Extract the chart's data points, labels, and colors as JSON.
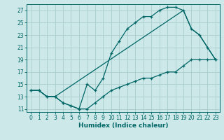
{
  "xlabel": "Humidex (Indice chaleur)",
  "ylabel": "",
  "bg_color": "#cce8e8",
  "grid_color": "#aacccc",
  "line_color": "#006666",
  "xlim": [
    -0.5,
    23.5
  ],
  "ylim": [
    10.5,
    28.0
  ],
  "xticks": [
    0,
    1,
    2,
    3,
    4,
    5,
    6,
    7,
    8,
    9,
    10,
    11,
    12,
    13,
    14,
    15,
    16,
    17,
    18,
    19,
    20,
    21,
    22,
    23
  ],
  "yticks": [
    11,
    13,
    15,
    17,
    19,
    21,
    23,
    25,
    27
  ],
  "line1_x": [
    0,
    1,
    2,
    3,
    4,
    5,
    6,
    7,
    8,
    9,
    10,
    11,
    12,
    13,
    14,
    15,
    16,
    17,
    18,
    19,
    20,
    21,
    22,
    23
  ],
  "line1_y": [
    14,
    14,
    13,
    13,
    12,
    11.5,
    11,
    11,
    12,
    13,
    14,
    14.5,
    15,
    15.5,
    16,
    16,
    16.5,
    17,
    17,
    18,
    19,
    19,
    19,
    19
  ],
  "line2_x": [
    0,
    1,
    2,
    3,
    4,
    5,
    6,
    7,
    8,
    9,
    10,
    11,
    12,
    13,
    14,
    15,
    16,
    17,
    18,
    19,
    20,
    21,
    22,
    23
  ],
  "line2_y": [
    14,
    14,
    13,
    13,
    12,
    11.5,
    11,
    15,
    14,
    16,
    20,
    22,
    24,
    25,
    26,
    26,
    27,
    27.5,
    27.5,
    27,
    24,
    23,
    21,
    19
  ],
  "line3_x": [
    0,
    1,
    2,
    3,
    19,
    20,
    21,
    22,
    23
  ],
  "line3_y": [
    14,
    14,
    13,
    13,
    27,
    24,
    23,
    21,
    19
  ]
}
